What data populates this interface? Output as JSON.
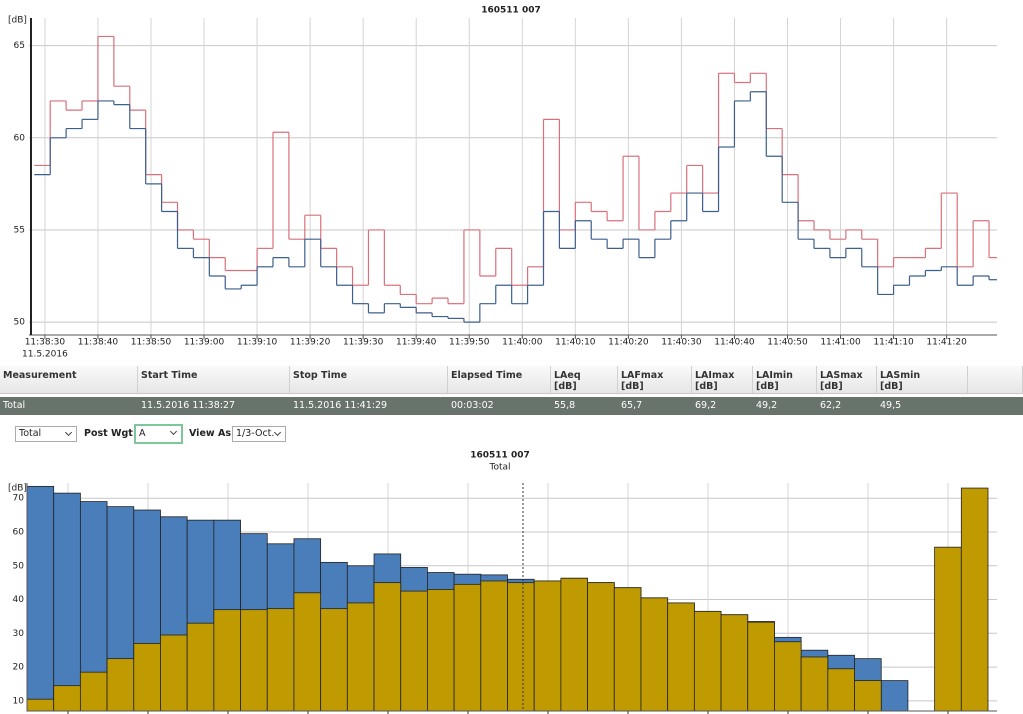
{
  "chart_data": [
    {
      "type": "line",
      "step": true,
      "title": "160511 007",
      "ylabel": "[dB]",
      "date_label": "11.5.2016",
      "grid": true,
      "x": [
        41908,
        41911,
        41914,
        41917,
        41920,
        41923,
        41926,
        41929,
        41932,
        41935,
        41938,
        41941,
        41944,
        41947,
        41950,
        41953,
        41956,
        41959,
        41962,
        41965,
        41968,
        41971,
        41974,
        41977,
        41980,
        41983,
        41986,
        41989,
        41992,
        41995,
        41998,
        42001,
        42004,
        42007,
        42010,
        42013,
        42016,
        42019,
        42022,
        42025,
        42028,
        42031,
        42034,
        42037,
        42040,
        42043,
        42046,
        42049,
        42052,
        42055,
        42058,
        42061,
        42064,
        42067,
        42070,
        42073,
        42076,
        42079,
        42082,
        42085,
        42088
      ],
      "series": [
        {
          "color": "#d9717b",
          "values": [
            58.5,
            62,
            61.5,
            62,
            65.5,
            62.8,
            61.5,
            58,
            56.5,
            55,
            54.5,
            53.5,
            52.8,
            52.8,
            54,
            60.3,
            54.5,
            55.8,
            54,
            53,
            52,
            55,
            52,
            51.5,
            51,
            51.3,
            51,
            55,
            52.5,
            54,
            52,
            53,
            61,
            55,
            56.5,
            56,
            55.5,
            59,
            55,
            56,
            57,
            58.5,
            57,
            63.5,
            63,
            63.5,
            60.5,
            58,
            55.5,
            55,
            54.5,
            55,
            54.5,
            53,
            53.5,
            53.5,
            54,
            57,
            53,
            55.5,
            53.5
          ]
        },
        {
          "color": "#3d5f8e",
          "values": [
            58,
            60,
            60.5,
            61,
            62,
            61.8,
            60.5,
            57.5,
            56,
            54,
            53.5,
            52.5,
            51.8,
            52,
            53,
            53.5,
            53,
            54.5,
            53,
            52,
            51,
            50.5,
            51,
            50.8,
            50.5,
            50.3,
            50.2,
            50,
            51,
            52,
            51,
            52,
            56,
            54,
            55.5,
            54.5,
            54,
            54.5,
            53.5,
            54.5,
            55.5,
            57,
            56,
            59.5,
            62,
            62.5,
            59,
            56.5,
            54.5,
            54,
            53.5,
            54,
            53,
            51.5,
            52,
            52.5,
            52.8,
            53,
            52,
            52.5,
            52.3
          ]
        }
      ],
      "xlim": [
        41907,
        42089.5
      ],
      "xticks": [
        {
          "value": 41910,
          "label": "11:38:30"
        },
        {
          "value": 41920,
          "label": "11:38:40"
        },
        {
          "value": 41930,
          "label": "11:38:50"
        },
        {
          "value": 41940,
          "label": "11:39:00"
        },
        {
          "value": 41950,
          "label": "11:39:10"
        },
        {
          "value": 41960,
          "label": "11:39:20"
        },
        {
          "value": 41970,
          "label": "11:39:30"
        },
        {
          "value": 41980,
          "label": "11:39:40"
        },
        {
          "value": 41990,
          "label": "11:39:50"
        },
        {
          "value": 42000,
          "label": "11:40:00"
        },
        {
          "value": 42010,
          "label": "11:40:10"
        },
        {
          "value": 42020,
          "label": "11:40:20"
        },
        {
          "value": 42030,
          "label": "11:40:30"
        },
        {
          "value": 42040,
          "label": "11:40:40"
        },
        {
          "value": 42050,
          "label": "11:40:50"
        },
        {
          "value": 42060,
          "label": "11:41:00"
        },
        {
          "value": 42070,
          "label": "11:41:10"
        },
        {
          "value": 42080,
          "label": "11:41:20"
        }
      ],
      "ylim": [
        49.3,
        66.5
      ],
      "yticks": [
        50,
        55,
        60,
        65
      ]
    },
    {
      "type": "bar",
      "overlap": true,
      "title": "160511 007",
      "subtitle": "Total",
      "ylabel": "[dB]",
      "grid": true,
      "categories": [
        null,
        null,
        null,
        null,
        null,
        null,
        null,
        null,
        null,
        null,
        null,
        null,
        null,
        null,
        null,
        null,
        null,
        null,
        null,
        null,
        null,
        null,
        null,
        null,
        null,
        null,
        null,
        null,
        null,
        null,
        null,
        null,
        null,
        null,
        null,
        null
      ],
      "series": [
        {
          "color": "#4a7ebb",
          "values": [
            73.5,
            71.5,
            69,
            67.5,
            66.5,
            64.5,
            63.5,
            63.5,
            59.5,
            56.5,
            58,
            51,
            50,
            53.5,
            49.5,
            48,
            47.5,
            47.3,
            46,
            45.5,
            46.3,
            45,
            43.5,
            40.5,
            39,
            36.5,
            35.5,
            33.5,
            28.8,
            25,
            23.5,
            22.5,
            16,
            null,
            null,
            null
          ]
        },
        {
          "color": "#bf9a00",
          "values": [
            10.5,
            14.5,
            18.5,
            22.5,
            27,
            29.5,
            33,
            37,
            37,
            37.3,
            42,
            37.3,
            39,
            45,
            42.5,
            43,
            44.5,
            45.5,
            45,
            45.5,
            46.3,
            45,
            43.5,
            40.5,
            39,
            36.5,
            35.5,
            33.3,
            27.5,
            23,
            19.5,
            16,
            null,
            null,
            55.5,
            73
          ]
        }
      ],
      "ylim": [
        7,
        74.5
      ],
      "yticks": [
        10,
        20,
        30,
        40,
        50,
        60,
        70
      ]
    }
  ],
  "table": {
    "columns": [
      {
        "label": "Measurement"
      },
      {
        "label": "Start Time"
      },
      {
        "label": "Stop Time"
      },
      {
        "label": "Elapsed Time"
      },
      {
        "label": "LAeq",
        "unit": "[dB]"
      },
      {
        "label": "LAFmax",
        "unit": "[dB]"
      },
      {
        "label": "LAImax",
        "unit": "[dB]"
      },
      {
        "label": "LAImin",
        "unit": "[dB]"
      },
      {
        "label": "LASmax",
        "unit": "[dB]"
      },
      {
        "label": "LASmin",
        "unit": "[dB]"
      }
    ],
    "rows": [
      [
        "Total",
        "11.5.2016 11:38:27",
        "11.5.2016 11:41:29",
        "00:03:02",
        "55,8",
        "65,7",
        "69,2",
        "49,2",
        "62,2",
        "49,5"
      ]
    ]
  },
  "controls": {
    "channel": "Total",
    "post_wgt_label": "Post Wgt:",
    "post_wgt": "A",
    "view_as_label": "View As",
    "view_as": "1/3-Oct."
  }
}
